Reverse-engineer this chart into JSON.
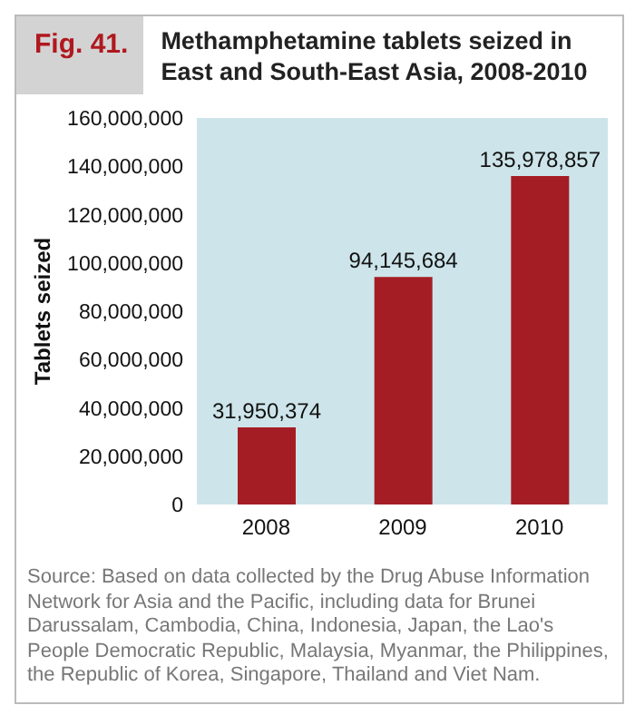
{
  "chart_data": {
    "type": "bar",
    "title": "Methamphetamine tablets seized in East and South-East Asia, 2008-2010",
    "ylabel": "Tablets seized",
    "categories": [
      "2008",
      "2009",
      "2010"
    ],
    "values": [
      31950374,
      94145684,
      135978857
    ],
    "color": "#a51d24",
    "ylim": [
      0,
      160000000
    ],
    "value_labels": [
      "31,950,374",
      "94,145,684",
      "135,978,857"
    ],
    "yticks": [
      0,
      {
        "value": 20000000,
        "label": "20,000,000"
      },
      {
        "value": 40000000,
        "label": "40,000,000"
      },
      {
        "value": 60000000,
        "label": "60,000,000"
      },
      {
        "value": 80000000,
        "label": "80,000,000"
      },
      {
        "value": 100000000,
        "label": "100,000,000"
      },
      {
        "value": 120000000,
        "label": "120,000,000"
      },
      {
        "value": 140000000,
        "label": "140,000,000"
      },
      {
        "value": 160000000,
        "label": "160,000,000"
      }
    ],
    "grid": false,
    "legend": false,
    "annotations": [
      "Fig. 41.",
      "Source: Based on data collected by the Drug Abuse Information Network for Asia and the Pacific, including data for Brunei Darussalam, Cambodia, China, Indonesia, Japan, the Lao's People Democratic Republic, Malaysia, Myanmar, the Philippines, the Republic of Korea, Singapore, Thailand and Viet Nam."
    ]
  }
}
